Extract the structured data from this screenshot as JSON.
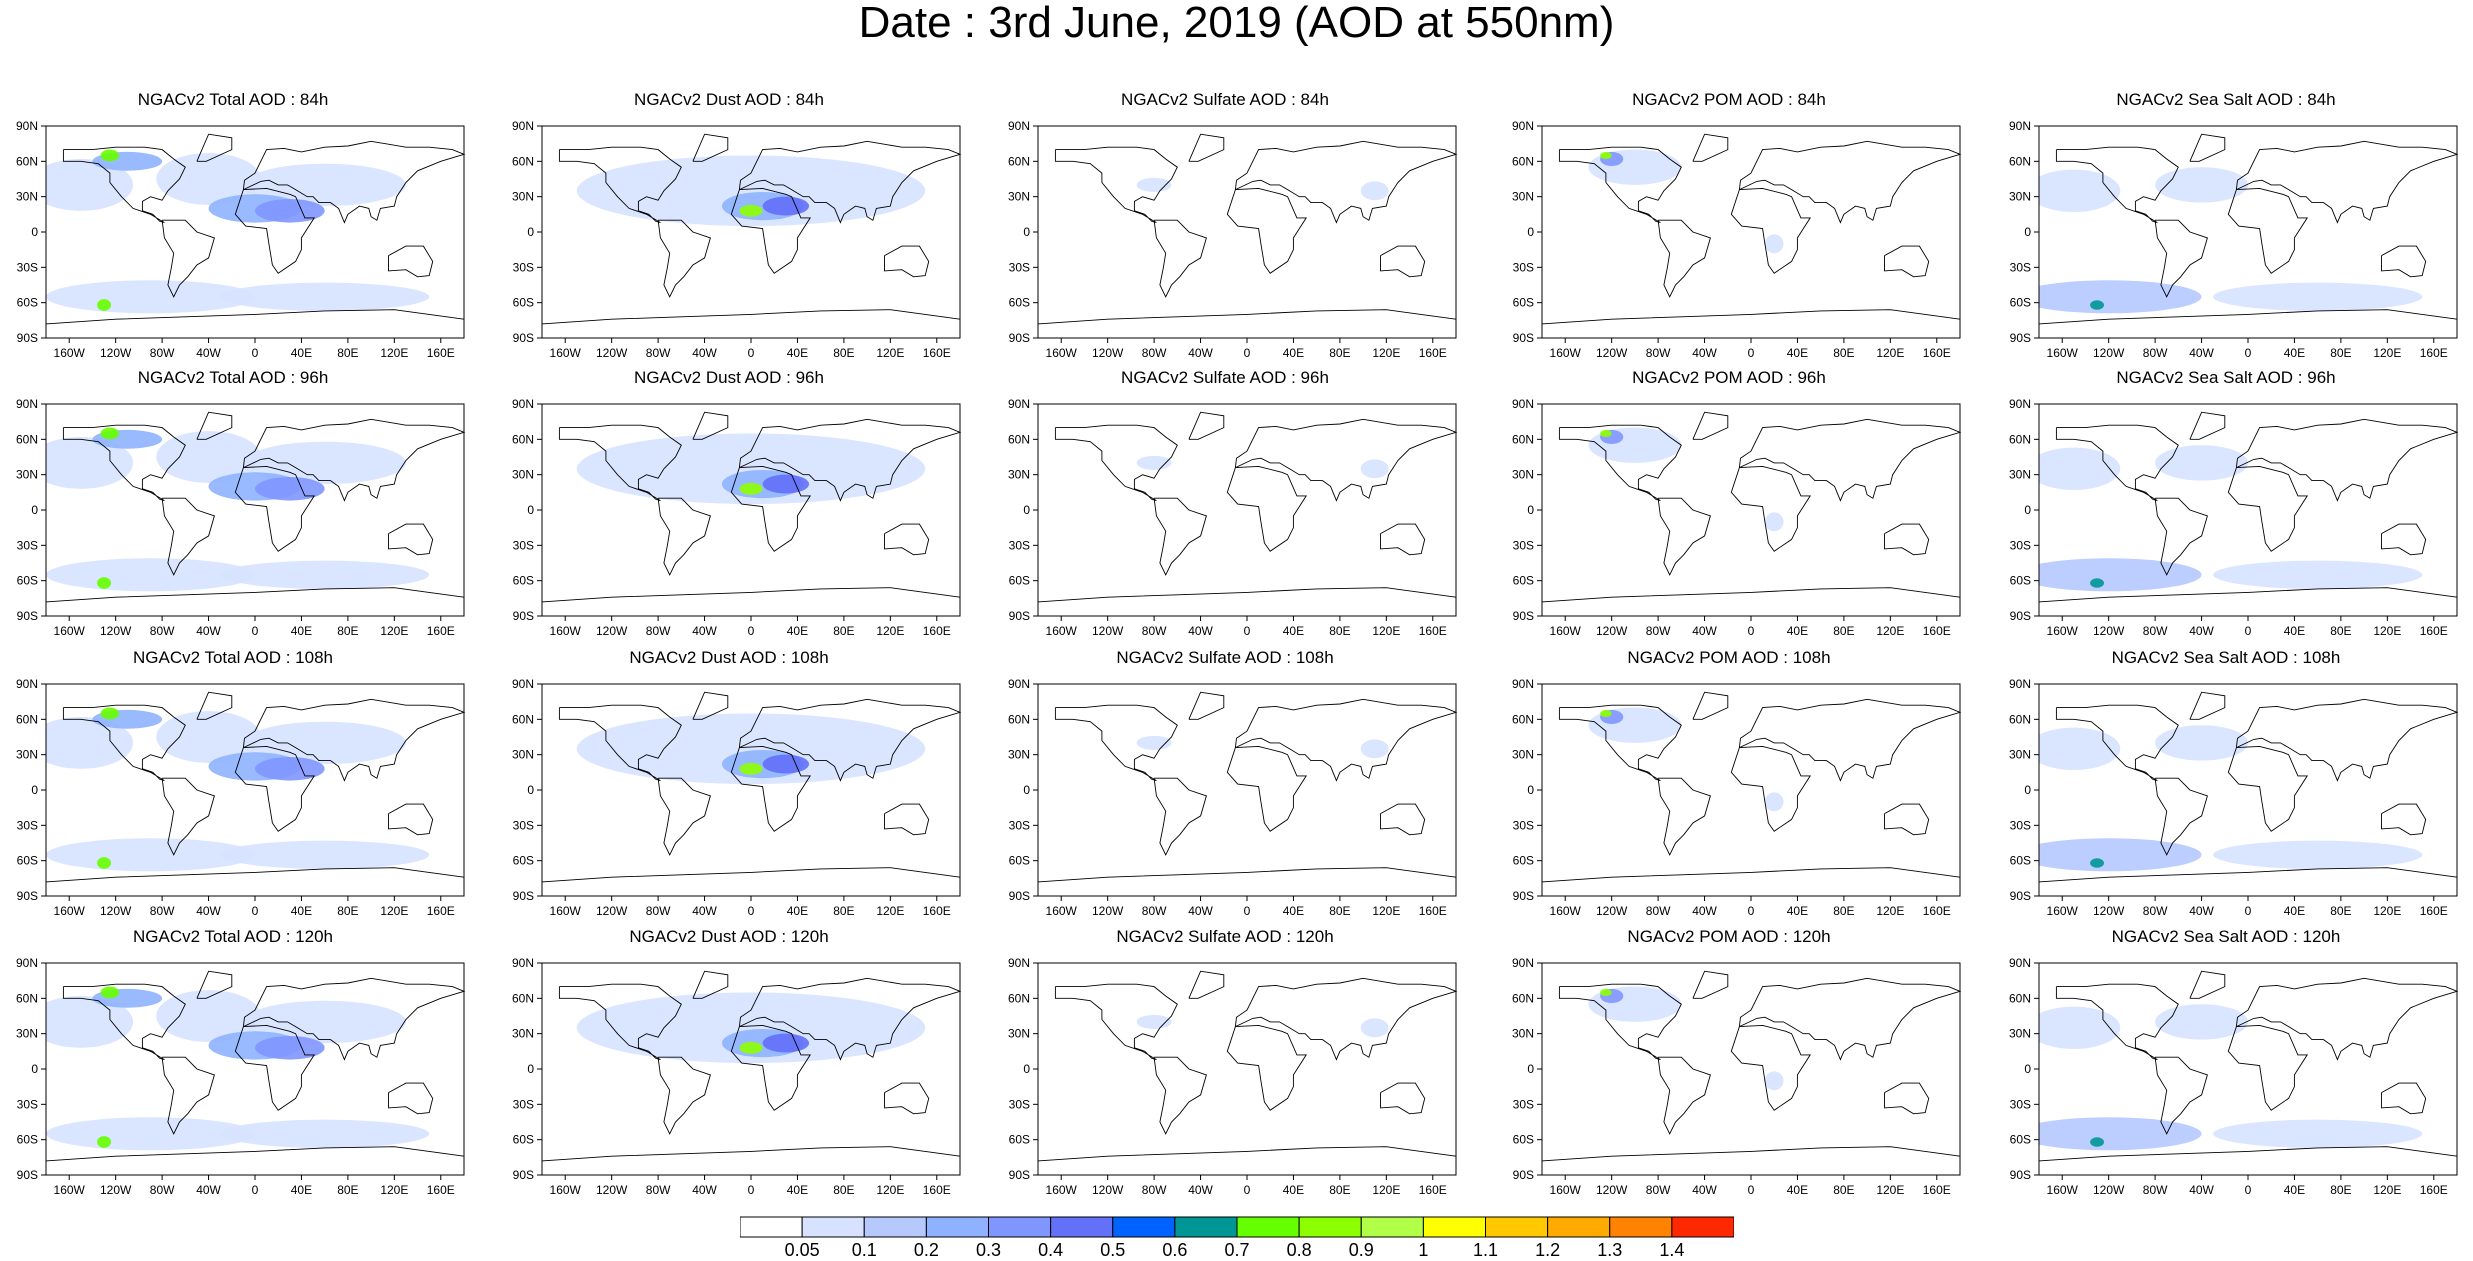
{
  "page_title": "Date : 3rd June, 2019 (AOD at 550nm)",
  "map_axes": {
    "lat_labels": [
      "90N",
      "60N",
      "30N",
      "0",
      "30S",
      "60S",
      "90S"
    ],
    "lon_labels": [
      "160W",
      "120W",
      "80W",
      "40W",
      "0",
      "40E",
      "80E",
      "120E",
      "160E"
    ]
  },
  "panels": [
    {
      "title": "NGACv2 Total AOD : 84h",
      "species": "total",
      "hour": 84
    },
    {
      "title": "NGACv2 Dust AOD : 84h",
      "species": "dust",
      "hour": 84
    },
    {
      "title": "NGACv2 Sulfate AOD : 84h",
      "species": "sulfate",
      "hour": 84
    },
    {
      "title": "NGACv2 POM AOD : 84h",
      "species": "pom",
      "hour": 84
    },
    {
      "title": "NGACv2 Sea Salt AOD : 84h",
      "species": "seasalt",
      "hour": 84
    },
    {
      "title": "NGACv2 Total AOD : 96h",
      "species": "total",
      "hour": 96
    },
    {
      "title": "NGACv2 Dust AOD : 96h",
      "species": "dust",
      "hour": 96
    },
    {
      "title": "NGACv2 Sulfate AOD : 96h",
      "species": "sulfate",
      "hour": 96
    },
    {
      "title": "NGACv2 POM AOD : 96h",
      "species": "pom",
      "hour": 96
    },
    {
      "title": "NGACv2 Sea Salt AOD : 96h",
      "species": "seasalt",
      "hour": 96
    },
    {
      "title": "NGACv2 Total AOD : 108h",
      "species": "total",
      "hour": 108
    },
    {
      "title": "NGACv2 Dust AOD : 108h",
      "species": "dust",
      "hour": 108
    },
    {
      "title": "NGACv2 Sulfate AOD : 108h",
      "species": "sulfate",
      "hour": 108
    },
    {
      "title": "NGACv2 POM AOD : 108h",
      "species": "pom",
      "hour": 108
    },
    {
      "title": "NGACv2 Sea Salt AOD : 108h",
      "species": "seasalt",
      "hour": 108
    },
    {
      "title": "NGACv2 Total AOD : 120h",
      "species": "total",
      "hour": 120
    },
    {
      "title": "NGACv2 Dust AOD : 120h",
      "species": "dust",
      "hour": 120
    },
    {
      "title": "NGACv2 Sulfate AOD : 120h",
      "species": "sulfate",
      "hour": 120
    },
    {
      "title": "NGACv2 POM AOD : 120h",
      "species": "pom",
      "hour": 120
    },
    {
      "title": "NGACv2 Sea Salt  AOD : 120h",
      "species": "seasalt",
      "hour": 120
    }
  ],
  "colorbar": {
    "labels": [
      "0.05",
      "0.1",
      "0.2",
      "0.3",
      "0.4",
      "0.5",
      "0.6",
      "0.7",
      "0.8",
      "0.9",
      "1",
      "1.1",
      "1.2",
      "1.3",
      "1.4"
    ],
    "colors": [
      "#ffffff",
      "#d6e2ff",
      "#b5c9ff",
      "#8eb2ff",
      "#7f96ff",
      "#6370f8",
      "#0063ff",
      "#009696",
      "#66ff00",
      "#8cff00",
      "#b2ff47",
      "#ffff00",
      "#ffc800",
      "#ffaa00",
      "#ff8200",
      "#ff2800"
    ]
  }
}
